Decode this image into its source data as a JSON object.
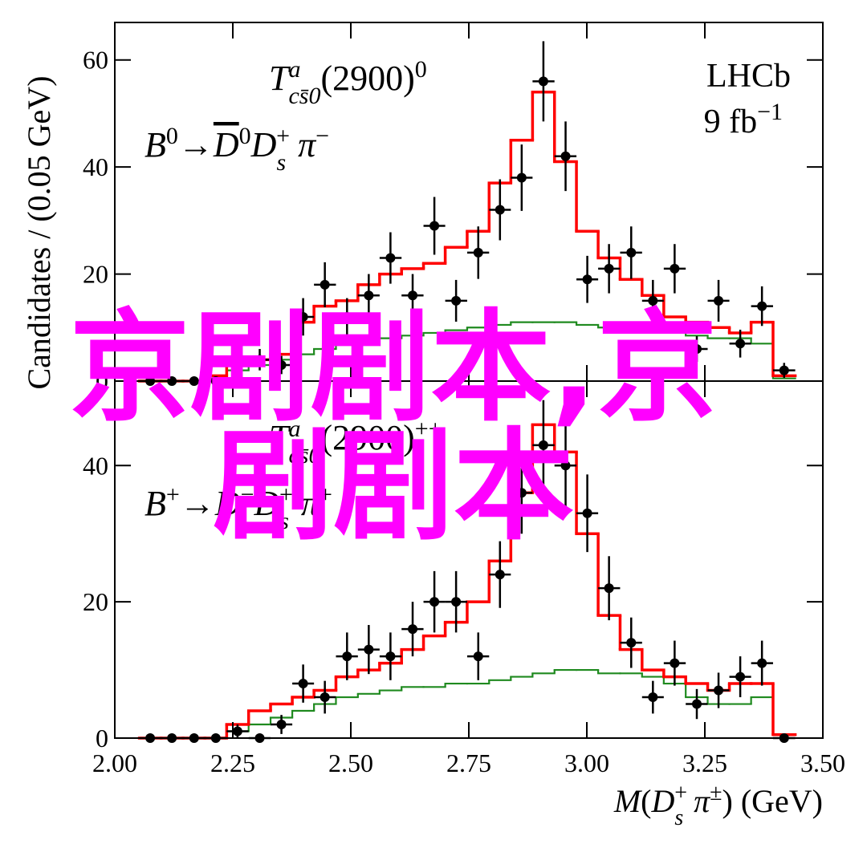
{
  "chart_data": [
    {
      "type": "step",
      "ylabel": "Candidates / (0.05 GeV)",
      "annotations": [
        [
          "T",
          "a",
          "cs̄0",
          "(2900)",
          "0"
        ],
        [
          "B",
          "0",
          "→",
          "D",
          "0",
          "D",
          "s",
          "+",
          "π",
          "−"
        ],
        [
          "LHCb"
        ],
        [
          "9 fb",
          "−1"
        ]
      ],
      "x": [
        2.075,
        2.121,
        2.168,
        2.214,
        2.26,
        2.307,
        2.353,
        2.399,
        2.445,
        2.492,
        2.538,
        2.584,
        2.631,
        2.677,
        2.723,
        2.77,
        2.816,
        2.862,
        2.908,
        2.955,
        3.001,
        3.047,
        3.094,
        3.14,
        3.186,
        3.233,
        3.279,
        3.325,
        3.371,
        3.418
      ],
      "xlim": [
        2.0,
        3.5
      ],
      "xticks": [
        2.0,
        2.25,
        2.5,
        2.75,
        3.0,
        3.25,
        3.5
      ],
      "ylim": [
        0,
        67
      ],
      "yticks": [
        0,
        20,
        40,
        60
      ],
      "series": [
        {
          "style": "step",
          "color": "#1f8a1f",
          "values": [
            0,
            0,
            0,
            0.5,
            2,
            3,
            4,
            5,
            6,
            7,
            7.5,
            8,
            8.5,
            9,
            9.5,
            10,
            10.5,
            11,
            11,
            11,
            10.5,
            10,
            10,
            9.5,
            9,
            8.5,
            8,
            8,
            7,
            0.5
          ]
        },
        {
          "style": "step",
          "color": "#ff0000",
          "values": [
            0,
            0,
            0,
            1,
            3,
            4,
            5,
            11,
            14,
            15,
            18,
            20,
            21,
            22,
            25,
            28,
            37,
            45,
            54,
            41,
            28,
            23,
            19,
            16,
            12,
            11,
            10,
            9,
            11,
            1
          ]
        },
        {
          "style": "points",
          "color": "#000000",
          "values": [
            0,
            0,
            0,
            0,
            4,
            4,
            3,
            12,
            18,
            12,
            16,
            23,
            16,
            29,
            15,
            24,
            32,
            38,
            56,
            42,
            19,
            21,
            24,
            15,
            21,
            6,
            15,
            7,
            14,
            2
          ],
          "errors": [
            0,
            0,
            0,
            0,
            2,
            2,
            1.7,
            3.5,
            4.2,
            3.5,
            4,
            4.8,
            4,
            5.4,
            3.9,
            4.9,
            5.7,
            6.2,
            7.5,
            6.5,
            4.4,
            4.6,
            4.9,
            3.9,
            4.6,
            2.4,
            3.9,
            2.6,
            3.7,
            1.4
          ]
        }
      ]
    },
    {
      "type": "step",
      "xlabel": [
        "M",
        "(",
        "D",
        "s",
        "+",
        "π",
        "±",
        ") (GeV)"
      ],
      "annotations": [
        [
          "T",
          "a",
          "cs̄0",
          "(2900)",
          "++"
        ],
        [
          "B",
          "+",
          "→",
          "D",
          "−",
          "D",
          "s",
          "+",
          "π",
          "+"
        ]
      ],
      "overlay": "京剧剧本,京剧剧本",
      "x": [
        2.075,
        2.121,
        2.168,
        2.214,
        2.26,
        2.307,
        2.353,
        2.399,
        2.445,
        2.492,
        2.538,
        2.584,
        2.631,
        2.677,
        2.723,
        2.77,
        2.816,
        2.862,
        2.908,
        2.955,
        3.001,
        3.047,
        3.094,
        3.14,
        3.186,
        3.233,
        3.279,
        3.325,
        3.371,
        3.418
      ],
      "xlim": [
        2.0,
        3.5
      ],
      "xticks": [
        {
          "value": 2.0,
          "label": "2.00"
        },
        {
          "value": 2.25,
          "label": "2.25"
        },
        {
          "value": 2.5,
          "label": "2.50"
        },
        {
          "value": 2.75,
          "label": "2.75"
        },
        {
          "value": 3.0,
          "label": "3.00"
        },
        {
          "value": 3.25,
          "label": "3.25"
        },
        {
          "value": 3.5,
          "label": "3.50"
        }
      ],
      "ylim": [
        0,
        52.4
      ],
      "yticks": [
        0,
        20,
        40
      ],
      "series": [
        {
          "style": "step",
          "color": "#1f8a1f",
          "values": [
            0,
            0,
            0,
            0,
            1,
            2,
            3,
            4,
            5,
            6,
            6.5,
            7,
            7.5,
            7.5,
            8,
            8,
            8.5,
            9,
            9.5,
            10,
            10,
            9.5,
            9.5,
            9,
            8,
            6,
            5,
            5,
            6,
            0.5
          ]
        },
        {
          "style": "step",
          "color": "#ff0000",
          "values": [
            0,
            0,
            0,
            0,
            2,
            4,
            5,
            6,
            7,
            9,
            10,
            11,
            13,
            15,
            17,
            20,
            26,
            36,
            46,
            42,
            30,
            18,
            13,
            10,
            9,
            8,
            7,
            8,
            8,
            0.5
          ]
        },
        {
          "style": "points",
          "color": "#000000",
          "values": [
            0,
            0,
            0,
            0,
            1,
            0,
            2,
            8,
            6,
            12,
            13,
            12,
            16,
            20,
            20,
            12,
            24,
            36,
            43,
            40,
            33,
            22,
            14,
            6,
            11,
            5,
            7,
            9,
            11,
            0
          ],
          "errors": [
            0,
            0,
            0,
            0,
            1,
            0,
            1.4,
            2.8,
            2.4,
            3.5,
            3.6,
            3.5,
            4,
            4.5,
            4.5,
            3.5,
            4.9,
            6,
            6.6,
            6.3,
            5.7,
            4.7,
            3.7,
            2.4,
            3.3,
            2.2,
            2.6,
            3,
            3.3,
            0
          ]
        }
      ]
    }
  ]
}
